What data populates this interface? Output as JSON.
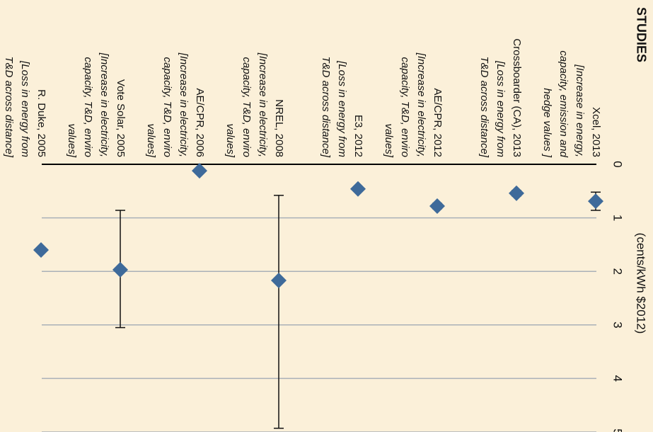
{
  "chart_data": {
    "type": "dot-errorbar",
    "title": "STUDIES",
    "x_label": "(cents/kWh $2012)",
    "categories": [
      "Xcel, 2013",
      "Crossboarder (CA), 2013",
      "AE/CPR, 2012",
      "E3, 2012",
      "NREL, 2008",
      "AE/CPR, 2006",
      "Vote Solar, 2005",
      "R. Duke, 2005"
    ],
    "descriptions": [
      [
        "[Increase in energy,",
        "capacity, emission and",
        "hedge values ]"
      ],
      [
        "[Loss in energy from",
        "T&D across distance]"
      ],
      [
        "[Increase in electricity,",
        "capacity, T&D, enviro",
        "values]"
      ],
      [
        "[Loss in energy from",
        "T&D across distance]"
      ],
      [
        "[Increase in electricity,",
        "capacity, T&D, enviro",
        "values]"
      ],
      [
        "[Increase in electricity,",
        "capacity, T&D, enviro",
        "values]"
      ],
      [
        "[Increase in electricity,",
        "capacity, T&D, enviro",
        "values]"
      ],
      [
        "[Loss in energy from",
        "T&D across distance]"
      ]
    ],
    "values": [
      0.69,
      0.54,
      0.78,
      0.46,
      2.17,
      0.12,
      1.97,
      1.6
    ],
    "error_minus": [
      0.17,
      0.05,
      0.05,
      null,
      1.59,
      null,
      1.11,
      null
    ],
    "error_plus": [
      0.17,
      0.05,
      0.05,
      null,
      2.76,
      null,
      1.08,
      null
    ],
    "color": "#3e6a9a",
    "xlim": [
      0,
      5
    ],
    "xticks": [
      0,
      1,
      2,
      3,
      4,
      5
    ],
    "grid": true
  }
}
